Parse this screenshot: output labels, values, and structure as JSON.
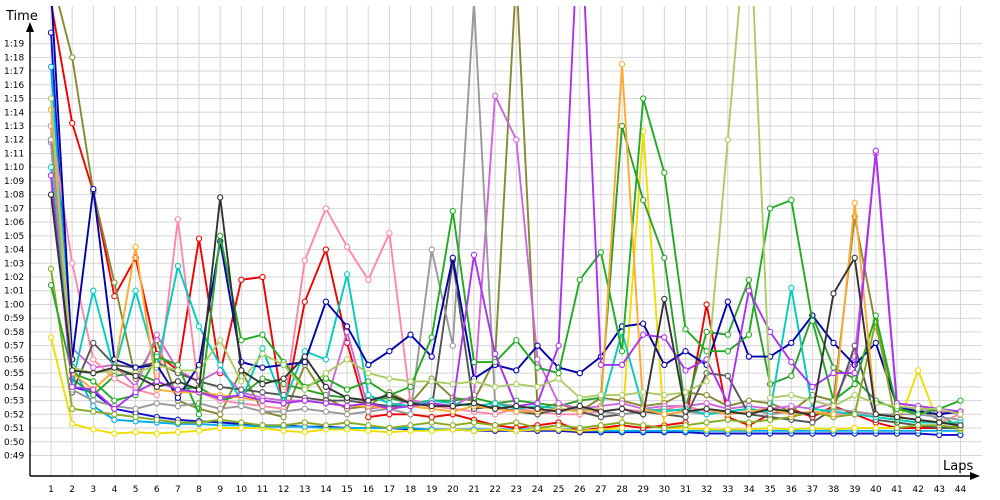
{
  "chart_data": {
    "type": "line",
    "title": "",
    "xlabel": "Laps",
    "ylabel": "Time",
    "xlim": [
      0.5,
      44.5
    ],
    "ylim": [
      48.5,
      80.5
    ],
    "grid": true,
    "x": [
      1,
      2,
      3,
      4,
      5,
      6,
      7,
      8,
      9,
      10,
      11,
      12,
      13,
      14,
      15,
      16,
      17,
      18,
      19,
      20,
      21,
      22,
      23,
      24,
      25,
      26,
      27,
      28,
      29,
      30,
      31,
      32,
      33,
      34,
      35,
      36,
      37,
      38,
      39,
      40,
      41,
      42,
      43,
      44
    ],
    "x_tick_labels": [
      "1",
      "2",
      "3",
      "4",
      "5",
      "6",
      "7",
      "8",
      "9",
      "10",
      "11",
      "12",
      "13",
      "14",
      "15",
      "16",
      "17",
      "18",
      "19",
      "20",
      "21",
      "22",
      "23",
      "24",
      "25",
      "26",
      "27",
      "28",
      "29",
      "30",
      "31",
      "32",
      "33",
      "34",
      "35",
      "36",
      "37",
      "38",
      "39",
      "40",
      "41",
      "42",
      "43",
      "44"
    ],
    "y_tick_labels": [
      {
        "v": 49,
        "label": "0:49"
      },
      {
        "v": 50,
        "label": "0:50"
      },
      {
        "v": 51,
        "label": "0:51"
      },
      {
        "v": 52,
        "label": "0:52"
      },
      {
        "v": 53,
        "label": "0:53"
      },
      {
        "v": 54,
        "label": "0:54"
      },
      {
        "v": 55,
        "label": "0:55"
      },
      {
        "v": 56,
        "label": "0:56"
      },
      {
        "v": 57,
        "label": "0:57"
      },
      {
        "v": 58,
        "label": "0:58"
      },
      {
        "v": 59,
        "label": "0:59"
      },
      {
        "v": 60,
        "label": "1:00"
      },
      {
        "v": 61,
        "label": "1:01"
      },
      {
        "v": 62,
        "label": "1:02"
      },
      {
        "v": 63,
        "label": "1:03"
      },
      {
        "v": 64,
        "label": "1:04"
      },
      {
        "v": 65,
        "label": "1:05"
      },
      {
        "v": 66,
        "label": "1:06"
      },
      {
        "v": 67,
        "label": "1:07"
      },
      {
        "v": 68,
        "label": "1:08"
      },
      {
        "v": 69,
        "label": "1:09"
      },
      {
        "v": 70,
        "label": "1:10"
      },
      {
        "v": 71,
        "label": "1:11"
      },
      {
        "v": 72,
        "label": "1:12"
      },
      {
        "v": 73,
        "label": "1:13"
      },
      {
        "v": 74,
        "label": "1:14"
      },
      {
        "v": 75,
        "label": "1:15"
      },
      {
        "v": 76,
        "label": "1:16"
      },
      {
        "v": 77,
        "label": "1:17"
      },
      {
        "v": 78,
        "label": "1:18"
      },
      {
        "v": 79,
        "label": "1:19"
      }
    ],
    "series": [
      {
        "color": "#1111cc",
        "values": [
          79.8,
          54.0,
          53.6,
          52.4,
          52.1,
          51.8,
          51.6,
          51.5,
          51.4,
          51.3,
          51.2,
          51.2,
          51.1,
          51.1,
          51.0,
          51.0,
          51.0,
          50.9,
          50.9,
          50.9,
          50.8,
          50.8,
          50.8,
          50.8,
          50.8,
          50.7,
          50.7,
          50.7,
          50.7,
          50.7,
          50.7,
          50.6,
          50.6,
          50.6,
          50.6,
          50.6,
          50.6,
          50.6,
          50.6,
          50.6,
          50.6,
          50.6,
          50.5,
          50.5
        ]
      },
      {
        "color": "#00aaee",
        "values": [
          77.3,
          55.5,
          52.6,
          51.6,
          51.5,
          51.4,
          51.3,
          51.3,
          51.2,
          51.2,
          51.1,
          51.1,
          51.1,
          51.0,
          51.0,
          51.0,
          51.0,
          51.0,
          50.9,
          50.9,
          50.9,
          50.9,
          50.9,
          50.9,
          50.9,
          50.9,
          50.8,
          50.8,
          50.8,
          50.8,
          50.8,
          50.8,
          50.8,
          50.8,
          50.8,
          50.8,
          50.8,
          50.8,
          50.8,
          50.8,
          50.8,
          50.8,
          50.8,
          50.8
        ]
      },
      {
        "color": "#ee0000",
        "values": [
          82.0,
          73.2,
          68.2,
          60.6,
          63.4,
          56.4,
          55.2,
          64.8,
          55.0,
          61.8,
          62.0,
          52.2,
          60.2,
          64.0,
          57.2,
          51.8,
          52.0,
          52.0,
          51.8,
          52.0,
          51.6,
          51.2,
          51.0,
          51.2,
          51.4,
          50.8,
          51.0,
          51.2,
          51.0,
          51.2,
          51.4,
          60.0,
          51.8,
          51.2,
          52.0,
          52.4,
          51.8,
          52.6,
          52.0,
          51.4,
          51.0,
          51.0,
          51.0,
          51.0
        ]
      },
      {
        "color": "#eedd00",
        "values": [
          57.6,
          51.3,
          50.9,
          50.6,
          50.7,
          50.6,
          50.7,
          50.8,
          51.0,
          51.0,
          51.0,
          50.8,
          50.7,
          50.9,
          50.9,
          50.8,
          50.7,
          50.8,
          50.8,
          50.9,
          50.8,
          50.9,
          50.8,
          50.9,
          50.9,
          50.8,
          50.9,
          51.0,
          72.6,
          51.0,
          51.0,
          50.9,
          50.9,
          50.9,
          51.0,
          50.9,
          51.0,
          50.9,
          51.0,
          51.0,
          51.0,
          55.2,
          51.2,
          50.9
        ]
      },
      {
        "color": "#888833",
        "values": [
          84.0,
          78.0,
          68.2,
          61.6,
          54.6,
          57.4,
          53.0,
          52.4,
          52.0,
          55.2,
          52.2,
          51.8,
          55.6,
          53.2,
          52.4,
          52.6,
          53.6,
          52.8,
          54.6,
          53.2,
          53.0,
          56.0,
          84.0,
          52.4,
          52.8,
          52.2,
          53.2,
          53.0,
          52.6,
          52.8,
          53.6,
          53.4,
          52.6,
          53.0,
          52.8,
          52.2,
          53.4,
          53.0,
          66.4,
          58.4,
          52.6,
          52.4,
          51.6,
          51.0
        ]
      },
      {
        "color": "#2e9e2e",
        "values": [
          73.0,
          54.6,
          53.4,
          54.8,
          55.0,
          54.4,
          53.8,
          54.0,
          53.0,
          53.4,
          54.6,
          54.2,
          53.8,
          53.4,
          53.2,
          53.0,
          53.2,
          52.8,
          53.0,
          53.0,
          53.2,
          52.8,
          53.0,
          52.8,
          52.6,
          53.0,
          53.2,
          73.0,
          67.6,
          63.4,
          52.4,
          58.0,
          57.8,
          61.8,
          54.2,
          54.8,
          59.2,
          55.4,
          54.6,
          53.0,
          52.4,
          52.2,
          52.0,
          51.0
        ]
      },
      {
        "color": "#cc66dd",
        "values": [
          71.8,
          56.8,
          55.4,
          55.6,
          54.0,
          57.8,
          55.2,
          54.4,
          55.2,
          53.6,
          53.2,
          53.0,
          53.0,
          52.8,
          58.0,
          52.4,
          52.6,
          53.0,
          52.8,
          52.6,
          53.4,
          75.2,
          72.0,
          56.0,
          52.8,
          52.4,
          52.6,
          52.8,
          52.4,
          52.6,
          52.6,
          52.8,
          52.4,
          52.6,
          52.4,
          52.6,
          52.4,
          52.8,
          56.2,
          71.0,
          52.6,
          52.4,
          52.2,
          52.0
        ]
      },
      {
        "color": "#ff88aa",
        "values": [
          73.0,
          63.0,
          56.0,
          54.6,
          53.8,
          53.4,
          66.2,
          53.6,
          53.0,
          52.8,
          52.6,
          52.4,
          63.2,
          67.0,
          64.2,
          61.8,
          65.2,
          52.8,
          52.6,
          52.4,
          52.2,
          52.0,
          52.4,
          52.2,
          52.0,
          52.0,
          52.2,
          52.4,
          52.2,
          52.4,
          52.6,
          52.2,
          52.0,
          52.2,
          52.4,
          52.0,
          52.2,
          52.0,
          52.0,
          52.0,
          51.8,
          51.6,
          51.4,
          52.0
        ]
      },
      {
        "color": "#555555",
        "values": [
          72.0,
          53.6,
          57.2,
          55.6,
          55.4,
          55.8,
          55.0,
          54.4,
          54.0,
          53.8,
          53.6,
          53.4,
          53.2,
          53.0,
          53.0,
          52.8,
          52.6,
          52.6,
          52.4,
          63.2,
          52.4,
          52.6,
          52.2,
          52.0,
          52.4,
          52.2,
          51.8,
          52.0,
          52.2,
          52.0,
          51.8,
          55.0,
          54.8,
          52.0,
          51.8,
          51.6,
          51.4,
          52.4,
          57.0,
          51.6,
          51.4,
          51.2,
          51.0,
          51.0
        ]
      },
      {
        "color": "#999999",
        "values": [
          72.0,
          53.8,
          53.0,
          52.6,
          52.4,
          52.8,
          52.6,
          52.8,
          52.4,
          52.6,
          52.2,
          52.2,
          52.4,
          52.2,
          52.0,
          52.2,
          52.4,
          52.0,
          64.0,
          57.0,
          82.0,
          52.8,
          52.6,
          52.4,
          52.2,
          52.4,
          52.2,
          52.0,
          52.2,
          52.4,
          52.2,
          52.0,
          52.2,
          52.4,
          52.0,
          52.2,
          52.0,
          52.4,
          52.2,
          52.0,
          52.0,
          52.0,
          51.8,
          51.6
        ]
      },
      {
        "color": "#00ccbb",
        "values": [
          70.0,
          54.2,
          61.0,
          55.2,
          61.0,
          55.4,
          62.8,
          58.4,
          55.6,
          53.0,
          56.8,
          52.8,
          56.6,
          56.0,
          62.2,
          53.4,
          52.8,
          52.6,
          53.0,
          52.8,
          52.6,
          52.8,
          52.4,
          52.6,
          52.4,
          52.2,
          52.4,
          58.0,
          52.4,
          52.2,
          52.4,
          52.0,
          52.2,
          52.4,
          52.2,
          61.2,
          52.4,
          52.2,
          52.0,
          51.8,
          51.6,
          51.4,
          51.4,
          51.4
        ]
      },
      {
        "color": "#0000aa",
        "values": [
          83.0,
          56.0,
          68.4,
          56.0,
          55.4,
          55.6,
          53.2,
          55.6,
          64.6,
          55.8,
          55.4,
          55.6,
          55.8,
          60.2,
          58.4,
          55.6,
          56.6,
          57.8,
          56.2,
          63.4,
          54.6,
          55.6,
          55.2,
          57.0,
          55.4,
          55.0,
          56.2,
          58.4,
          58.6,
          55.6,
          56.6,
          55.6,
          60.2,
          56.2,
          56.2,
          57.2,
          59.2,
          57.2,
          55.6,
          57.2,
          52.6,
          52.2,
          52.0,
          52.2
        ]
      },
      {
        "color": "#88aa22",
        "values": [
          62.6,
          52.4,
          52.2,
          52.0,
          51.8,
          51.6,
          51.4,
          51.4,
          51.6,
          51.4,
          51.2,
          51.2,
          51.4,
          51.2,
          51.4,
          51.2,
          51.0,
          51.2,
          51.4,
          51.2,
          51.4,
          51.2,
          51.4,
          51.0,
          51.2,
          51.0,
          51.2,
          51.4,
          51.2,
          51.0,
          51.2,
          51.4,
          51.6,
          51.4,
          51.6,
          51.8,
          52.2,
          51.8,
          52.0,
          58.8,
          51.0,
          51.2,
          51.2,
          51.0
        ]
      },
      {
        "color": "#22aa22",
        "values": [
          61.4,
          55.0,
          54.4,
          53.0,
          53.4,
          56.2,
          55.6,
          52.0,
          65.0,
          57.4,
          57.8,
          55.8,
          54.0,
          54.6,
          53.8,
          54.4,
          53.4,
          54.0,
          57.6,
          66.8,
          55.8,
          55.8,
          57.4,
          55.4,
          55.0,
          61.8,
          63.8,
          56.6,
          75.0,
          69.6,
          58.2,
          56.6,
          56.6,
          57.8,
          67.0,
          67.6,
          58.8,
          53.0,
          54.2,
          59.2,
          52.4,
          52.0,
          52.4,
          53.0
        ]
      },
      {
        "color": "#ffaa33",
        "values": [
          74.2,
          55.0,
          53.8,
          55.2,
          64.2,
          53.8,
          53.6,
          53.6,
          53.4,
          53.2,
          53.0,
          52.8,
          53.0,
          52.8,
          52.6,
          52.6,
          52.4,
          52.6,
          52.4,
          52.2,
          52.6,
          52.4,
          52.2,
          52.2,
          52.4,
          52.2,
          52.4,
          77.5,
          52.4,
          52.0,
          52.2,
          52.4,
          52.0,
          52.2,
          52.4,
          52.0,
          52.2,
          52.0,
          67.4,
          52.0,
          51.8,
          51.6,
          51.4,
          51.2
        ]
      },
      {
        "color": "#aa33ee",
        "values": [
          69.4,
          54.0,
          53.8,
          52.4,
          53.6,
          54.4,
          53.8,
          53.6,
          53.2,
          53.4,
          53.0,
          52.8,
          53.0,
          52.8,
          52.6,
          52.8,
          52.4,
          52.6,
          52.8,
          52.6,
          63.6,
          56.4,
          52.6,
          52.8,
          57.0,
          90.0,
          55.6,
          55.6,
          57.8,
          57.6,
          55.2,
          56.0,
          52.8,
          61.0,
          58.0,
          55.8,
          54.0,
          55.0,
          55.0,
          71.2,
          52.8,
          52.6,
          52.4,
          52.2
        ]
      },
      {
        "color": "#aacc66",
        "values": [
          75.0,
          55.4,
          55.0,
          55.2,
          55.0,
          55.6,
          55.2,
          55.2,
          57.4,
          54.4,
          56.4,
          55.6,
          53.8,
          55.0,
          56.0,
          55.0,
          54.6,
          54.4,
          54.4,
          54.2,
          54.4,
          54.0,
          54.2,
          54.0,
          54.6,
          53.2,
          53.4,
          53.4,
          53.6,
          53.4,
          53.6,
          54.4,
          72.0,
          90.0,
          53.2,
          53.4,
          53.0,
          52.6,
          53.4,
          52.8,
          52.6,
          52.4,
          52.4,
          52.0
        ]
      },
      {
        "color": "#333333",
        "values": [
          68.0,
          55.2,
          55.0,
          55.4,
          54.8,
          54.0,
          54.4,
          53.8,
          67.8,
          55.2,
          54.2,
          54.6,
          56.2,
          54.0,
          53.2,
          53.0,
          53.4,
          52.8,
          52.6,
          52.6,
          52.8,
          52.4,
          52.6,
          52.4,
          52.2,
          52.6,
          52.2,
          52.4,
          52.0,
          60.4,
          52.2,
          52.4,
          52.2,
          52.0,
          52.4,
          52.2,
          52.0,
          60.8,
          63.4,
          52.0,
          51.8,
          51.6,
          51.4,
          51.2
        ]
      }
    ]
  }
}
